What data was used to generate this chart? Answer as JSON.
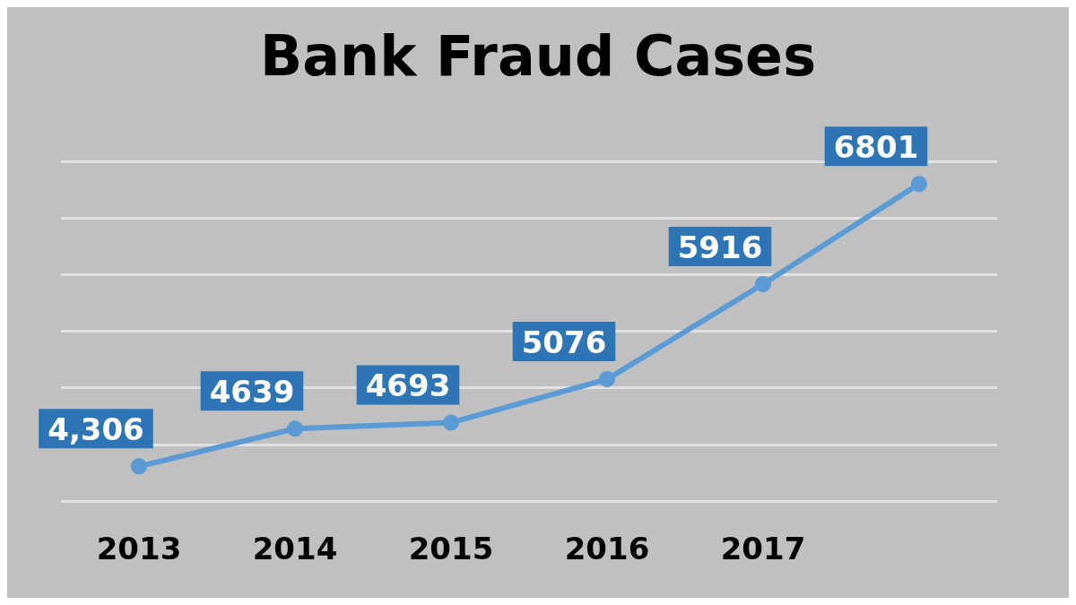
{
  "chart_data": {
    "type": "line",
    "title": "Bank Fraud Cases",
    "categories": [
      "2013",
      "2014",
      "2015",
      "2016",
      "2017",
      null
    ],
    "series": [
      {
        "color": "#5b9bd5",
        "values": [
          4306,
          4639,
          4693,
          5076,
          5916,
          6801
        ],
        "value_labels": [
          "4,306",
          "4639",
          "4693",
          "5076",
          "5916",
          "6801"
        ]
      }
    ],
    "ylim": [
      4000,
      7000
    ],
    "yticks": [
      {
        "value": 4000,
        "label": null
      },
      {
        "value": 4500,
        "label": null
      },
      {
        "value": 5000,
        "label": null
      },
      {
        "value": 5500,
        "label": null
      },
      {
        "value": 6000,
        "label": null
      },
      {
        "value": 6500,
        "label": null
      },
      {
        "value": 7000,
        "label": null
      }
    ],
    "tick_labels": "x",
    "grid": "y",
    "marker": "circle",
    "line_style": "solid"
  }
}
